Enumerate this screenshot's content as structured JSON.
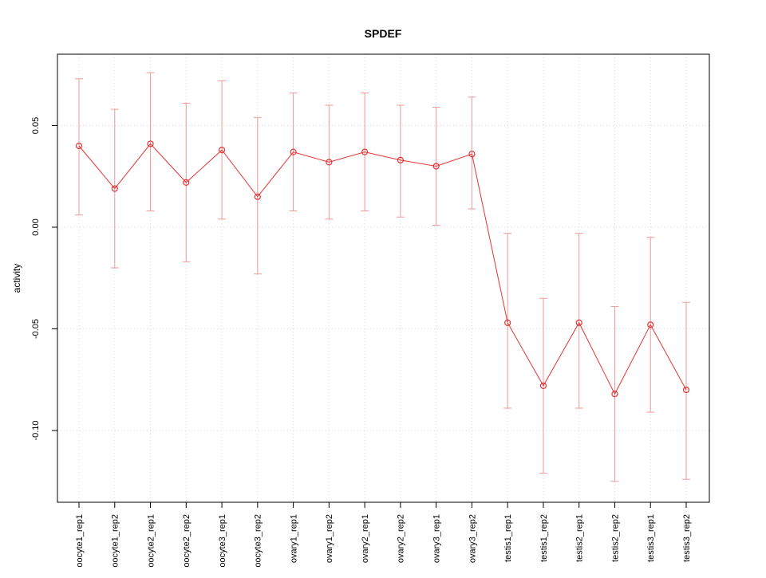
{
  "chart_data": {
    "type": "line",
    "title": "SPDEF",
    "ylabel": "activity",
    "xlabel": "",
    "categories": [
      "oocyte1_rep1",
      "oocyte1_rep2",
      "oocyte2_rep1",
      "oocyte2_rep2",
      "oocyte3_rep1",
      "oocyte3_rep2",
      "ovary1_rep1",
      "ovary1_rep2",
      "ovary2_rep1",
      "ovary2_rep2",
      "ovary3_rep1",
      "ovary3_rep2",
      "testis1_rep1",
      "testis1_rep2",
      "testis2_rep1",
      "testis2_rep2",
      "testis3_rep1",
      "testis3_rep2"
    ],
    "series": [
      {
        "name": "activity",
        "values": [
          0.04,
          0.019,
          0.041,
          0.022,
          0.038,
          0.015,
          0.037,
          0.032,
          0.037,
          0.033,
          0.03,
          0.036,
          -0.047,
          -0.078,
          -0.047,
          -0.082,
          -0.048,
          -0.08
        ],
        "error_low": [
          0.006,
          -0.02,
          0.008,
          -0.017,
          0.004,
          -0.023,
          0.008,
          0.004,
          0.008,
          0.005,
          0.001,
          0.009,
          -0.089,
          -0.121,
          -0.089,
          -0.125,
          -0.091,
          -0.124
        ],
        "error_high": [
          0.073,
          0.058,
          0.076,
          0.061,
          0.072,
          0.054,
          0.066,
          0.06,
          0.066,
          0.06,
          0.059,
          0.064,
          -0.003,
          -0.035,
          -0.003,
          -0.039,
          -0.005,
          -0.037
        ]
      }
    ],
    "yticks": [
      0.05,
      0.0,
      -0.05,
      -0.1
    ],
    "ytick_labels": [
      "0.05",
      "0.00",
      "-0.05",
      "-0.10"
    ],
    "ylim": [
      -0.1353,
      0.0851
    ],
    "grid": "dotted",
    "legend": "none",
    "marker": "open-circle",
    "colors": {
      "series": "#e63333",
      "error_bars": "#f09999",
      "grid": "#d8d8d8",
      "axis": "#000000"
    }
  }
}
